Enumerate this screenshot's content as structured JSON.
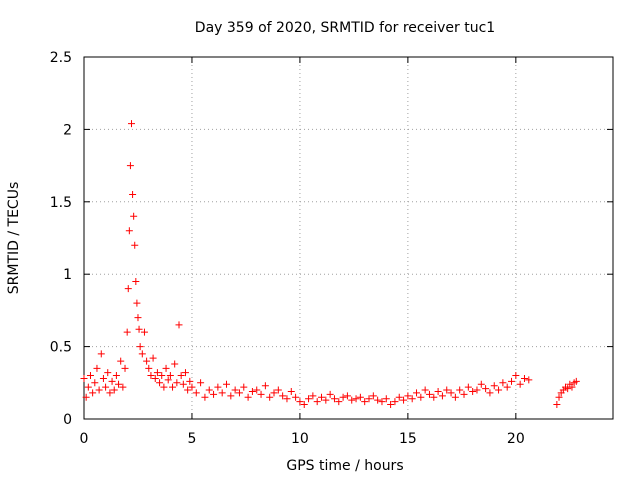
{
  "chart_data": {
    "type": "scatter",
    "title": "Day 359 of 2020, SRMTID for receiver tuc1",
    "xlabel": "GPS time / hours",
    "ylabel": "SRMTID / TECUs",
    "xlim": [
      0,
      24.5
    ],
    "ylim": [
      0,
      2.5
    ],
    "x_ticks": [
      0,
      5,
      10,
      15,
      20
    ],
    "x_tick_labels": [
      "0",
      "5",
      "10",
      "15",
      "20"
    ],
    "y_ticks": [
      0,
      0.5,
      1,
      1.5,
      2,
      2.5
    ],
    "y_tick_labels": [
      "0",
      "0.5",
      "1",
      "1.5",
      "2",
      "2.5"
    ],
    "grid": true,
    "marker": "+",
    "color": "#ff0000",
    "series": [
      {
        "name": "SRMTID",
        "x": [
          0.0,
          0.1,
          0.2,
          0.3,
          0.4,
          0.5,
          0.6,
          0.7,
          0.8,
          0.9,
          1.0,
          1.1,
          1.2,
          1.3,
          1.4,
          1.5,
          1.6,
          1.7,
          1.8,
          1.9,
          2.0,
          2.05,
          2.1,
          2.15,
          2.2,
          2.25,
          2.3,
          2.35,
          2.4,
          2.45,
          2.5,
          2.55,
          2.6,
          2.7,
          2.8,
          2.9,
          3.0,
          3.1,
          3.2,
          3.3,
          3.4,
          3.5,
          3.6,
          3.7,
          3.8,
          3.9,
          4.0,
          4.1,
          4.2,
          4.3,
          4.4,
          4.5,
          4.6,
          4.7,
          4.8,
          4.9,
          5.0,
          5.2,
          5.4,
          5.6,
          5.8,
          6.0,
          6.2,
          6.4,
          6.6,
          6.8,
          7.0,
          7.2,
          7.4,
          7.6,
          7.8,
          8.0,
          8.2,
          8.4,
          8.6,
          8.8,
          9.0,
          9.2,
          9.4,
          9.6,
          9.8,
          10.0,
          10.2,
          10.4,
          10.6,
          10.8,
          11.0,
          11.2,
          11.4,
          11.6,
          11.8,
          12.0,
          12.2,
          12.4,
          12.6,
          12.8,
          13.0,
          13.2,
          13.4,
          13.6,
          13.8,
          14.0,
          14.2,
          14.4,
          14.6,
          14.8,
          15.0,
          15.2,
          15.4,
          15.6,
          15.8,
          16.0,
          16.2,
          16.4,
          16.6,
          16.8,
          17.0,
          17.2,
          17.4,
          17.6,
          17.8,
          18.0,
          18.2,
          18.4,
          18.6,
          18.8,
          19.0,
          19.2,
          19.4,
          19.6,
          19.8,
          20.0,
          20.2,
          20.4,
          20.6,
          21.9,
          22.0,
          22.1,
          22.2,
          22.3,
          22.4,
          22.5,
          22.6,
          22.7,
          22.8
        ],
        "y": [
          0.28,
          0.15,
          0.22,
          0.3,
          0.18,
          0.25,
          0.35,
          0.2,
          0.45,
          0.28,
          0.22,
          0.32,
          0.18,
          0.26,
          0.2,
          0.3,
          0.24,
          0.4,
          0.22,
          0.35,
          0.6,
          0.9,
          1.3,
          1.75,
          2.04,
          1.55,
          1.4,
          1.2,
          0.95,
          0.8,
          0.7,
          0.62,
          0.5,
          0.45,
          0.6,
          0.4,
          0.35,
          0.3,
          0.42,
          0.28,
          0.32,
          0.25,
          0.3,
          0.22,
          0.35,
          0.27,
          0.3,
          0.22,
          0.38,
          0.25,
          0.65,
          0.3,
          0.24,
          0.32,
          0.2,
          0.26,
          0.22,
          0.18,
          0.25,
          0.15,
          0.2,
          0.17,
          0.22,
          0.18,
          0.24,
          0.16,
          0.2,
          0.18,
          0.22,
          0.15,
          0.19,
          0.2,
          0.17,
          0.23,
          0.15,
          0.18,
          0.2,
          0.16,
          0.14,
          0.19,
          0.15,
          0.12,
          0.1,
          0.14,
          0.16,
          0.12,
          0.15,
          0.13,
          0.17,
          0.14,
          0.12,
          0.15,
          0.16,
          0.13,
          0.14,
          0.15,
          0.12,
          0.14,
          0.16,
          0.13,
          0.12,
          0.14,
          0.1,
          0.12,
          0.15,
          0.13,
          0.16,
          0.14,
          0.18,
          0.15,
          0.2,
          0.17,
          0.15,
          0.19,
          0.16,
          0.2,
          0.18,
          0.15,
          0.2,
          0.17,
          0.22,
          0.19,
          0.2,
          0.24,
          0.21,
          0.18,
          0.23,
          0.2,
          0.25,
          0.22,
          0.26,
          0.3,
          0.24,
          0.28,
          0.27,
          0.1,
          0.15,
          0.18,
          0.2,
          0.22,
          0.21,
          0.24,
          0.22,
          0.25,
          0.26
        ]
      }
    ]
  }
}
